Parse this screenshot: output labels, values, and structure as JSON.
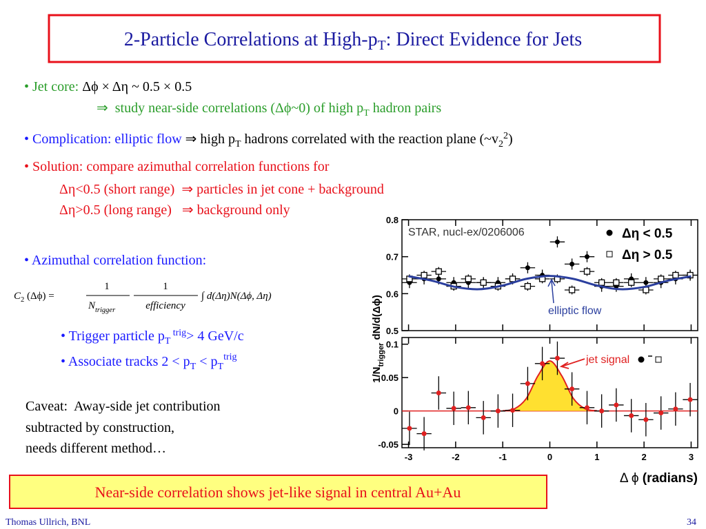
{
  "title": [
    "2-Particle Correlations at High-p",
    "T",
    ": Direct Evidence for Jets"
  ],
  "bullets": {
    "jet_core": [
      "• Jet core: ",
      "Δϕ × Δη ~ 0.5 × 0.5",
      "⇒  study near-side correlations (Δϕ~0) of high p",
      "T",
      " hadron pairs"
    ],
    "complication": [
      "• Complication: elliptic flow ",
      "⇒ high p",
      "T",
      " hadrons correlated with the reaction plane (~v",
      "2",
      "2",
      ")"
    ],
    "solution": [
      "• Solution: compare azimuthal correlation functions for",
      "Δη<0.5 (short range)  ⇒ particles in jet cone + background",
      "Δη>0.5 (long range)   ⇒ background only"
    ],
    "azimuthal": "• Azimuthal correlation function:",
    "trigger": [
      "• Trigger particle p",
      "T",
      " trig",
      "> 4 GeV/c"
    ],
    "associate": [
      "• Associate tracks 2 < p",
      "T",
      " < p",
      "T",
      "trig"
    ]
  },
  "formula": {
    "lhs": [
      "C",
      "2",
      "  (Δϕ) = "
    ],
    "num1": "1",
    "den1": [
      "N",
      "trigger"
    ],
    "num2": "1",
    "den2": "efficiency",
    "integrand": "∫ d(Δη)N(Δϕ, Δη)"
  },
  "caveat": [
    "Caveat:  Away-side jet contribution",
    "subtracted by construction,",
    "needs different method…"
  ],
  "conclusion": "Near-side correlation shows jet-like signal in central Au+Au",
  "footer": "Thomas Ullrich, BNL",
  "page_number": "34",
  "chart_data": [
    {
      "type": "scatter",
      "annotation": "STAR, nucl-ex/0206006",
      "ylabel": [
        "1/N",
        "trigger",
        "  dN/d(Δϕ)"
      ],
      "xlim": [
        -3.14,
        3.14
      ],
      "xticks": [
        -3,
        -2,
        -1,
        0,
        1,
        2,
        3
      ],
      "show_xtick_labels": false,
      "ylim": [
        0.5,
        0.8
      ],
      "yticks": [
        0.5,
        0.6,
        0.7,
        0.8
      ],
      "series": [
        {
          "name": "Δη < 0.5",
          "kind": "points",
          "marker": "filled",
          "color": "#000000",
          "xerror": 0.157,
          "x": [
            -2.98,
            -2.67,
            -2.36,
            -2.04,
            -1.73,
            -1.41,
            -1.1,
            -0.79,
            -0.47,
            -0.16,
            0.16,
            0.47,
            0.79,
            1.1,
            1.41,
            1.73,
            2.04,
            2.36,
            2.67,
            2.98
          ],
          "values": [
            0.63,
            0.64,
            0.64,
            0.63,
            0.63,
            0.63,
            0.63,
            0.64,
            0.67,
            0.65,
            0.74,
            0.68,
            0.7,
            0.62,
            0.62,
            0.64,
            0.63,
            0.63,
            0.64,
            0.65
          ],
          "errors": [
            0.015,
            0.015,
            0.015,
            0.015,
            0.015,
            0.015,
            0.015,
            0.015,
            0.015,
            0.015,
            0.015,
            0.015,
            0.015,
            0.015,
            0.015,
            0.015,
            0.015,
            0.015,
            0.015,
            0.015
          ]
        },
        {
          "name": "Δη > 0.5",
          "kind": "points",
          "marker": "open",
          "color": "#000000",
          "xerror": 0.157,
          "x": [
            -2.98,
            -2.67,
            -2.36,
            -2.04,
            -1.73,
            -1.41,
            -1.1,
            -0.79,
            -0.47,
            -0.16,
            0.16,
            0.47,
            0.79,
            1.1,
            1.41,
            1.73,
            2.04,
            2.36,
            2.67,
            2.98
          ],
          "values": [
            0.64,
            0.65,
            0.66,
            0.62,
            0.64,
            0.63,
            0.62,
            0.64,
            0.62,
            0.64,
            0.64,
            0.61,
            0.66,
            0.63,
            0.63,
            0.63,
            0.61,
            0.64,
            0.65,
            0.65
          ],
          "errors": [
            0.012,
            0.012,
            0.012,
            0.012,
            0.012,
            0.012,
            0.012,
            0.012,
            0.012,
            0.012,
            0.012,
            0.012,
            0.012,
            0.012,
            0.012,
            0.012,
            0.012,
            0.012,
            0.012,
            0.012
          ]
        },
        {
          "name": "elliptic flow",
          "kind": "line",
          "color": "#2b3f9e",
          "x": [
            -3,
            -2.5,
            -2,
            -1.5,
            -1,
            -0.5,
            0,
            0.5,
            1,
            1.5,
            2,
            2.5,
            3
          ],
          "values": [
            0.647,
            0.635,
            0.618,
            0.612,
            0.622,
            0.64,
            0.648,
            0.64,
            0.622,
            0.612,
            0.618,
            0.635,
            0.647
          ]
        }
      ]
    },
    {
      "type": "scatter",
      "xlabel": [
        "Δ ϕ ",
        "(radians)"
      ],
      "xlim": [
        -3.14,
        3.14
      ],
      "xticks": [
        -3,
        -2,
        -1,
        0,
        1,
        2,
        3
      ],
      "show_xtick_labels": true,
      "ylim": [
        -0.055,
        0.11
      ],
      "yticks": [
        -0.05,
        0,
        0.05,
        0.1
      ],
      "series": [
        {
          "name": "jet signal",
          "kind": "area",
          "color": "#ffe030",
          "edge": "#e02020",
          "x": [
            -1,
            -0.75,
            -0.5,
            -0.25,
            0,
            0.25,
            0.5,
            0.75,
            1
          ],
          "values": [
            0.0003,
            0.0033,
            0.0187,
            0.053,
            0.075,
            0.053,
            0.0187,
            0.0033,
            0.0003
          ]
        },
        {
          "kind": "points",
          "marker": "filled",
          "color": "#e02020",
          "xerror": 0.157,
          "x": [
            -2.98,
            -2.67,
            -2.36,
            -2.04,
            -1.73,
            -1.41,
            -1.1,
            -0.79,
            -0.47,
            -0.16,
            0.16,
            0.47,
            0.79,
            1.1,
            1.41,
            1.73,
            2.04,
            2.36,
            2.67,
            2.98
          ],
          "values": [
            -0.026,
            -0.034,
            0.027,
            0.004,
            0.005,
            -0.01,
            0.0,
            0.001,
            0.041,
            0.071,
            0.079,
            0.033,
            0.005,
            0.0,
            0.009,
            -0.007,
            -0.013,
            -0.003,
            0.003,
            0.017
          ],
          "errors": [
            0.025,
            0.025,
            0.025,
            0.025,
            0.025,
            0.025,
            0.025,
            0.025,
            0.025,
            0.025,
            0.025,
            0.025,
            0.025,
            0.025,
            0.025,
            0.025,
            0.025,
            0.025,
            0.025,
            0.025
          ]
        }
      ]
    }
  ]
}
